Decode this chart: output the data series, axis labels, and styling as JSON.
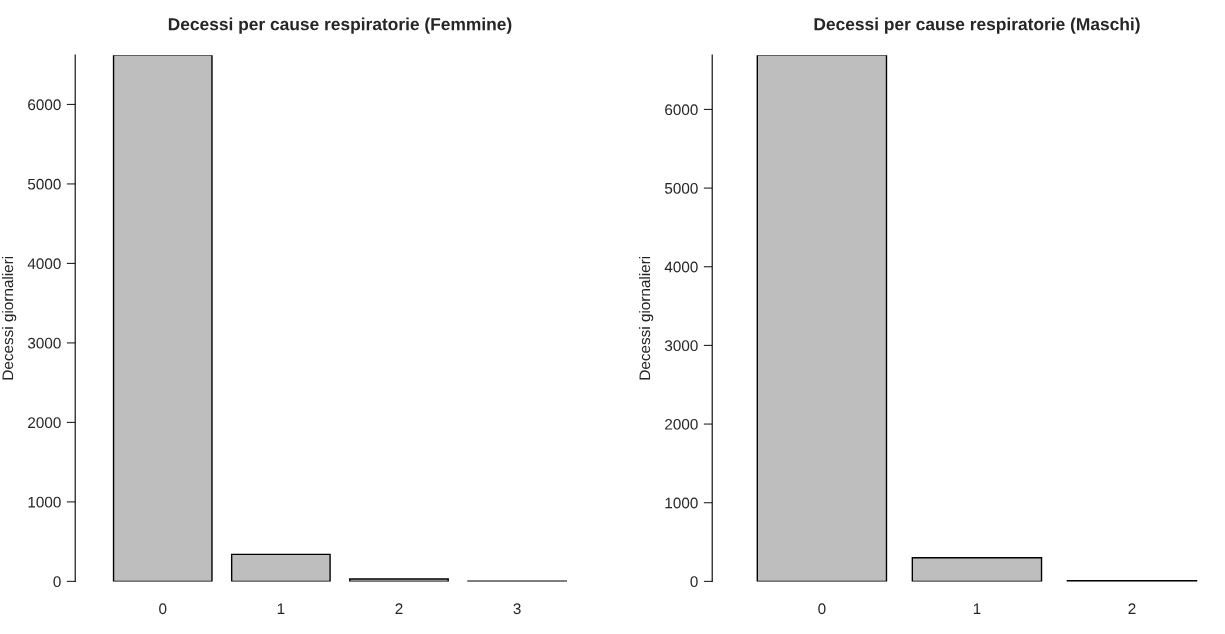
{
  "chart_data": [
    {
      "type": "bar",
      "title": "Decessi per cause respiratorie (Femmine)",
      "ylabel": "Decessi giornalieri",
      "categories": [
        "0",
        "1",
        "2",
        "3"
      ],
      "values": [
        6620,
        340,
        30,
        3
      ],
      "color": "#bebebe",
      "ylim": [
        0,
        6620
      ],
      "yticks": [
        0,
        1000,
        2000,
        3000,
        4000,
        5000,
        6000
      ],
      "grid": false
    },
    {
      "type": "bar",
      "title": "Decessi per cause respiratorie (Maschi)",
      "ylabel": "Decessi giornalieri",
      "categories": [
        "0",
        "1",
        "2"
      ],
      "values": [
        6690,
        300,
        10
      ],
      "color": "#bebebe",
      "ylim": [
        0,
        6690
      ],
      "yticks": [
        0,
        1000,
        2000,
        3000,
        4000,
        5000,
        6000
      ],
      "grid": false
    }
  ]
}
